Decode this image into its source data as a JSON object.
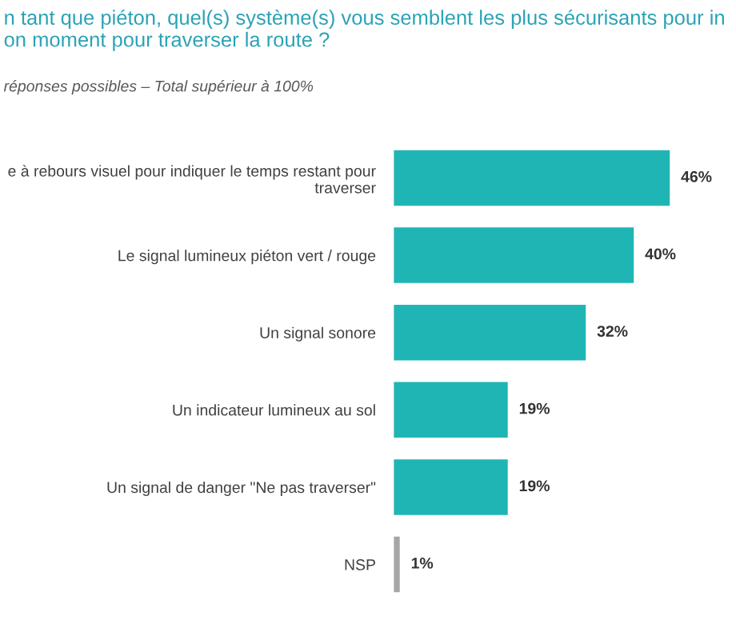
{
  "chart_data": {
    "type": "bar",
    "orientation": "horizontal",
    "title": "n tant que piéton, quel(s) système(s) vous semblent les plus sécurisants pour in\non moment pour traverser la route ?",
    "subtitle": "réponses possibles – Total supérieur à 100%",
    "categories": [
      "e à rebours visuel pour indiquer le temps restant pour\ntraverser",
      "Le signal lumineux piéton vert / rouge",
      "Un signal sonore",
      "Un indicateur lumineux au sol",
      "Un signal de danger \"Ne pas traverser\"",
      "NSP"
    ],
    "values": [
      46,
      40,
      32,
      19,
      19,
      1
    ],
    "colors": [
      "#1fb5b5",
      "#1fb5b5",
      "#1fb5b5",
      "#1fb5b5",
      "#1fb5b5",
      "#a6a6a6"
    ],
    "value_labels": [
      "46%",
      "40%",
      "32%",
      "19%",
      "19%",
      "1%"
    ],
    "grid": false,
    "legend": false
  }
}
